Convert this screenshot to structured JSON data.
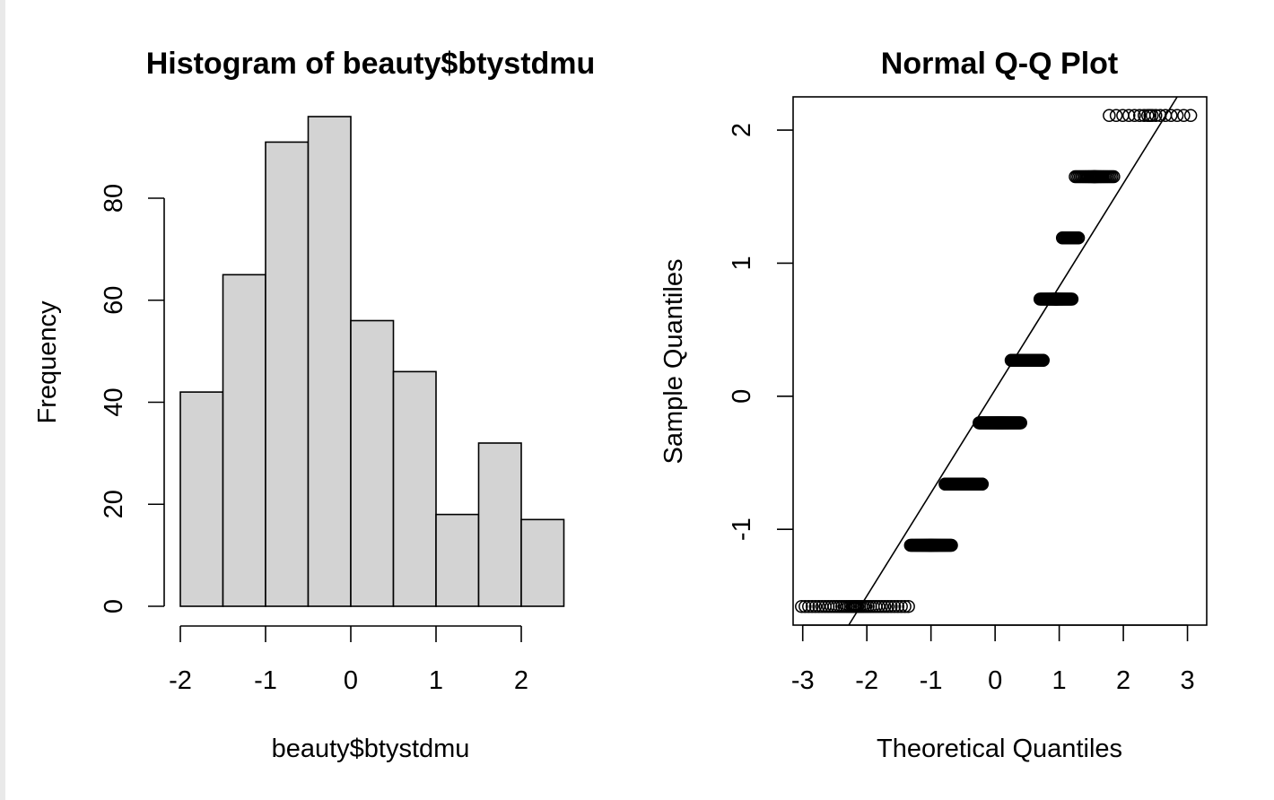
{
  "chart_data": [
    {
      "type": "bar",
      "title": "Histogram of beauty$btystdmu",
      "xlabel": "beauty$btystdmu",
      "ylabel": "Frequency",
      "bins": [
        {
          "start": -2.0,
          "end": -1.5,
          "count": 42
        },
        {
          "start": -1.5,
          "end": -1.0,
          "count": 65
        },
        {
          "start": -1.0,
          "end": -0.5,
          "count": 91
        },
        {
          "start": -0.5,
          "end": 0.0,
          "count": 96
        },
        {
          "start": 0.0,
          "end": 0.5,
          "count": 56
        },
        {
          "start": 0.5,
          "end": 1.0,
          "count": 46
        },
        {
          "start": 1.0,
          "end": 1.5,
          "count": 18
        },
        {
          "start": 1.5,
          "end": 2.0,
          "count": 32
        },
        {
          "start": 2.0,
          "end": 2.5,
          "count": 17
        }
      ],
      "xticks": [
        "-2",
        "-1",
        "0",
        "1",
        "2"
      ],
      "yticks": [
        "0",
        "20",
        "40",
        "60",
        "80"
      ],
      "xlim": [
        -2,
        2.5
      ],
      "ylim": [
        0,
        96
      ],
      "bar_fill": "#d3d3d3",
      "grid": false
    },
    {
      "type": "scatter",
      "title": "Normal Q-Q Plot",
      "xlabel": "Theoretical Quantiles",
      "ylabel": "Sample Quantiles",
      "xticks": [
        "-3",
        "-2",
        "-1",
        "0",
        "1",
        "2",
        "3"
      ],
      "yticks": [
        "-1",
        "0",
        "1",
        "2"
      ],
      "xlim": [
        -3.15,
        3.3
      ],
      "ylim": [
        -1.72,
        2.25
      ],
      "reference_line": {
        "intercept": 0.049,
        "slope": 0.775
      },
      "groups": [
        {
          "y": -1.58,
          "x_from": -3.02,
          "x_to": -1.35,
          "count": 42
        },
        {
          "y": -1.12,
          "x_from": -1.32,
          "x_to": -0.68,
          "count": 65
        },
        {
          "y": -0.66,
          "x_from": -0.78,
          "x_to": -0.2,
          "count": 91
        },
        {
          "y": -0.2,
          "x_from": -0.25,
          "x_to": 0.4,
          "count": 96
        },
        {
          "y": 0.27,
          "x_from": 0.25,
          "x_to": 0.75,
          "count": 56
        },
        {
          "y": 0.73,
          "x_from": 0.7,
          "x_to": 1.2,
          "count": 46
        },
        {
          "y": 1.19,
          "x_from": 1.05,
          "x_to": 1.3,
          "count": 18
        },
        {
          "y": 1.65,
          "x_from": 1.25,
          "x_to": 1.85,
          "count": 32
        },
        {
          "y": 2.11,
          "x_from": 1.78,
          "x_to": 3.05,
          "count": 17
        }
      ],
      "grid": false
    }
  ]
}
